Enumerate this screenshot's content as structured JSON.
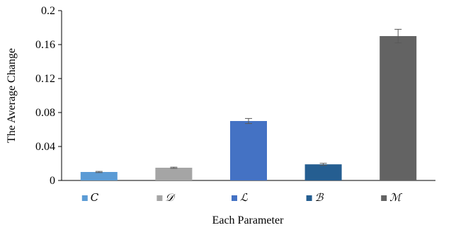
{
  "chart_data": {
    "type": "bar",
    "categories": [
      "𝐶",
      "𝒟",
      "ℒ",
      "ℬ",
      "ℳ"
    ],
    "values": [
      0.01,
      0.015,
      0.07,
      0.019,
      0.17
    ],
    "errors": [
      0.0007,
      0.0007,
      0.003,
      0.0012,
      0.008
    ],
    "colors": [
      "#5B9BD5",
      "#A5A5A5",
      "#4472C4",
      "#255E91",
      "#636363"
    ],
    "error_bar_color": "#595959",
    "xlabel": "Each Parameter",
    "ylabel": "The Average Change",
    "ylim": [
      0,
      0.2
    ],
    "yticks": [
      "0",
      "0.04",
      "0.08",
      "0.12",
      "0.16",
      "0.2"
    ],
    "ytick_values": [
      0,
      0.04,
      0.08,
      0.12,
      0.16,
      0.2
    ],
    "grid": false,
    "legend": {
      "position": "bottom",
      "entries": [
        "𝐶",
        "𝒟",
        "ℒ",
        "ℬ",
        "ℳ"
      ]
    }
  }
}
